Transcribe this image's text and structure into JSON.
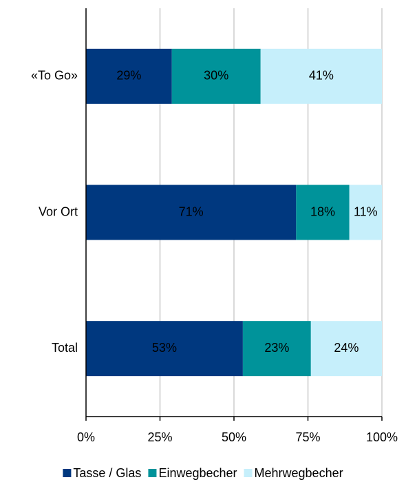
{
  "chart_data": {
    "type": "stacked-bar-horizontal",
    "categories": [
      "«To Go»",
      "Vor Ort",
      "Total"
    ],
    "series": [
      {
        "name": "Tasse / Glas",
        "color": "#00387f",
        "values": [
          29,
          71,
          53
        ],
        "value_labels": [
          "29%",
          "71%",
          "53%"
        ]
      },
      {
        "name": "Einwegbecher",
        "color": "#00939a",
        "values": [
          30,
          18,
          23
        ],
        "value_labels": [
          "30%",
          "18%",
          "23%"
        ]
      },
      {
        "name": "Mehrwegbecher",
        "color": "#c6effb",
        "values": [
          41,
          11,
          24
        ],
        "value_labels": [
          "41%",
          "11%",
          "24%"
        ]
      }
    ],
    "xlim": [
      0,
      100
    ],
    "xticks": [
      {
        "value": 0,
        "label": "0%"
      },
      {
        "value": 25,
        "label": "25%"
      },
      {
        "value": 50,
        "label": "50%"
      },
      {
        "value": 75,
        "label": "75%"
      },
      {
        "value": 100,
        "label": "100%"
      }
    ],
    "grid": true,
    "legend": "bottom"
  }
}
